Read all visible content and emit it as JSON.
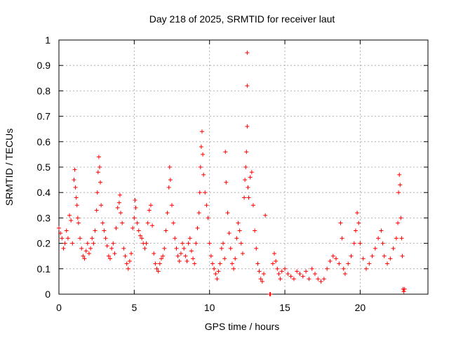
{
  "chart_data": {
    "type": "scatter",
    "title": "Day 218 of 2025, SRMTID for receiver laut",
    "xlabel": "GPS time / hours",
    "ylabel": "SRMTID / TECUs",
    "xlim": [
      0,
      24.5
    ],
    "ylim": [
      0,
      1
    ],
    "xticks": [
      0,
      5,
      10,
      15,
      20
    ],
    "xtick_labels": [
      "0",
      "5",
      "10",
      "15",
      "20"
    ],
    "yticks": [
      0,
      0.1,
      0.2,
      0.3,
      0.4,
      0.5,
      0.6,
      0.7,
      0.8,
      0.9,
      1
    ],
    "ytick_labels": [
      "0",
      "0.1",
      "0.2",
      "0.3",
      "0.4",
      "0.5",
      "0.6",
      "0.7",
      "0.8",
      "0.9",
      "1"
    ],
    "grid": true,
    "marker": "+",
    "color": "#ff0000",
    "series": [
      {
        "name": "SRMTID",
        "points": [
          [
            0.0,
            0.26
          ],
          [
            0.1,
            0.24
          ],
          [
            0.2,
            0.22
          ],
          [
            0.3,
            0.18
          ],
          [
            0.4,
            0.2
          ],
          [
            0.5,
            0.25
          ],
          [
            0.6,
            0.22
          ],
          [
            0.7,
            0.31
          ],
          [
            0.8,
            0.29
          ],
          [
            0.9,
            0.2
          ],
          [
            1.0,
            0.45
          ],
          [
            1.05,
            0.49
          ],
          [
            1.1,
            0.42
          ],
          [
            1.15,
            0.38
          ],
          [
            1.2,
            0.35
          ],
          [
            1.25,
            0.3
          ],
          [
            1.3,
            0.28
          ],
          [
            1.4,
            0.22
          ],
          [
            1.5,
            0.18
          ],
          [
            1.6,
            0.15
          ],
          [
            1.7,
            0.14
          ],
          [
            1.8,
            0.17
          ],
          [
            1.9,
            0.2
          ],
          [
            2.0,
            0.16
          ],
          [
            2.1,
            0.18
          ],
          [
            2.2,
            0.22
          ],
          [
            2.3,
            0.2
          ],
          [
            2.4,
            0.25
          ],
          [
            2.5,
            0.33
          ],
          [
            2.55,
            0.4
          ],
          [
            2.6,
            0.48
          ],
          [
            2.65,
            0.54
          ],
          [
            2.7,
            0.5
          ],
          [
            2.75,
            0.44
          ],
          [
            2.8,
            0.35
          ],
          [
            2.9,
            0.28
          ],
          [
            3.0,
            0.25
          ],
          [
            3.1,
            0.22
          ],
          [
            3.2,
            0.19
          ],
          [
            3.3,
            0.15
          ],
          [
            3.4,
            0.14
          ],
          [
            3.5,
            0.18
          ],
          [
            3.6,
            0.2
          ],
          [
            3.7,
            0.16
          ],
          [
            3.8,
            0.26
          ],
          [
            3.9,
            0.34
          ],
          [
            4.0,
            0.36
          ],
          [
            4.05,
            0.39
          ],
          [
            4.1,
            0.32
          ],
          [
            4.2,
            0.28
          ],
          [
            4.3,
            0.18
          ],
          [
            4.4,
            0.15
          ],
          [
            4.5,
            0.12
          ],
          [
            4.6,
            0.1
          ],
          [
            4.7,
            0.13
          ],
          [
            4.8,
            0.16
          ],
          [
            4.9,
            0.26
          ],
          [
            5.0,
            0.3
          ],
          [
            5.05,
            0.37
          ],
          [
            5.1,
            0.34
          ],
          [
            5.2,
            0.28
          ],
          [
            5.3,
            0.25
          ],
          [
            5.4,
            0.23
          ],
          [
            5.5,
            0.22
          ],
          [
            5.6,
            0.2
          ],
          [
            5.7,
            0.18
          ],
          [
            5.8,
            0.2
          ],
          [
            5.9,
            0.28
          ],
          [
            6.0,
            0.33
          ],
          [
            6.1,
            0.35
          ],
          [
            6.2,
            0.27
          ],
          [
            6.3,
            0.16
          ],
          [
            6.4,
            0.12
          ],
          [
            6.5,
            0.1
          ],
          [
            6.6,
            0.09
          ],
          [
            6.7,
            0.12
          ],
          [
            6.8,
            0.14
          ],
          [
            6.9,
            0.15
          ],
          [
            7.0,
            0.18
          ],
          [
            7.1,
            0.25
          ],
          [
            7.2,
            0.32
          ],
          [
            7.3,
            0.42
          ],
          [
            7.35,
            0.5
          ],
          [
            7.4,
            0.45
          ],
          [
            7.5,
            0.35
          ],
          [
            7.6,
            0.28
          ],
          [
            7.7,
            0.22
          ],
          [
            7.8,
            0.18
          ],
          [
            7.9,
            0.15
          ],
          [
            8.0,
            0.13
          ],
          [
            8.1,
            0.16
          ],
          [
            8.2,
            0.2
          ],
          [
            8.3,
            0.18
          ],
          [
            8.4,
            0.15
          ],
          [
            8.5,
            0.13
          ],
          [
            8.6,
            0.2
          ],
          [
            8.7,
            0.22
          ],
          [
            8.8,
            0.17
          ],
          [
            8.9,
            0.14
          ],
          [
            9.0,
            0.12
          ],
          [
            9.1,
            0.2
          ],
          [
            9.2,
            0.26
          ],
          [
            9.3,
            0.32
          ],
          [
            9.35,
            0.4
          ],
          [
            9.4,
            0.5
          ],
          [
            9.45,
            0.58
          ],
          [
            9.5,
            0.64
          ],
          [
            9.55,
            0.55
          ],
          [
            9.6,
            0.47
          ],
          [
            9.7,
            0.4
          ],
          [
            9.8,
            0.35
          ],
          [
            9.9,
            0.3
          ],
          [
            10.0,
            0.2
          ],
          [
            10.1,
            0.15
          ],
          [
            10.2,
            0.12
          ],
          [
            10.3,
            0.1
          ],
          [
            10.4,
            0.08
          ],
          [
            10.5,
            0.06
          ],
          [
            10.6,
            0.09
          ],
          [
            10.7,
            0.12
          ],
          [
            10.8,
            0.18
          ],
          [
            10.9,
            0.2
          ],
          [
            11.0,
            0.14
          ],
          [
            11.05,
            0.56
          ],
          [
            11.1,
            0.44
          ],
          [
            11.2,
            0.32
          ],
          [
            11.3,
            0.24
          ],
          [
            11.4,
            0.18
          ],
          [
            11.5,
            0.12
          ],
          [
            11.6,
            0.1
          ],
          [
            11.7,
            0.14
          ],
          [
            11.8,
            0.22
          ],
          [
            11.9,
            0.28
          ],
          [
            12.0,
            0.25
          ],
          [
            12.1,
            0.2
          ],
          [
            12.2,
            0.16
          ],
          [
            12.3,
            0.38
          ],
          [
            12.35,
            0.45
          ],
          [
            12.4,
            0.5
          ],
          [
            12.45,
            0.56
          ],
          [
            12.5,
            0.95
          ],
          [
            12.5,
            0.82
          ],
          [
            12.5,
            0.66
          ],
          [
            12.55,
            0.42
          ],
          [
            12.6,
            0.38
          ],
          [
            12.7,
            0.46
          ],
          [
            12.8,
            0.48
          ],
          [
            12.9,
            0.35
          ],
          [
            13.0,
            0.25
          ],
          [
            13.1,
            0.18
          ],
          [
            13.2,
            0.12
          ],
          [
            13.3,
            0.09
          ],
          [
            13.4,
            0.06
          ],
          [
            13.5,
            0.05
          ],
          [
            13.6,
            0.08
          ],
          [
            13.7,
            0.31
          ],
          [
            14.0,
            0.0
          ],
          [
            14.05,
            0.0
          ],
          [
            14.2,
            0.12
          ],
          [
            14.3,
            0.16
          ],
          [
            14.4,
            0.13
          ],
          [
            14.5,
            0.1
          ],
          [
            14.6,
            0.08
          ],
          [
            14.7,
            0.06
          ],
          [
            14.8,
            0.09
          ],
          [
            15.0,
            0.1
          ],
          [
            15.2,
            0.08
          ],
          [
            15.4,
            0.07
          ],
          [
            15.6,
            0.06
          ],
          [
            15.8,
            0.09
          ],
          [
            16.0,
            0.08
          ],
          [
            16.2,
            0.07
          ],
          [
            16.4,
            0.09
          ],
          [
            16.6,
            0.06
          ],
          [
            16.8,
            0.1
          ],
          [
            17.0,
            0.08
          ],
          [
            17.2,
            0.06
          ],
          [
            17.4,
            0.05
          ],
          [
            17.6,
            0.06
          ],
          [
            17.8,
            0.1
          ],
          [
            18.0,
            0.13
          ],
          [
            18.2,
            0.15
          ],
          [
            18.4,
            0.14
          ],
          [
            18.6,
            0.12
          ],
          [
            18.7,
            0.28
          ],
          [
            18.8,
            0.22
          ],
          [
            18.9,
            0.1
          ],
          [
            19.0,
            0.08
          ],
          [
            19.2,
            0.12
          ],
          [
            19.4,
            0.15
          ],
          [
            19.6,
            0.2
          ],
          [
            19.7,
            0.25
          ],
          [
            19.8,
            0.32
          ],
          [
            19.9,
            0.28
          ],
          [
            20.0,
            0.2
          ],
          [
            20.2,
            0.14
          ],
          [
            20.4,
            0.1
          ],
          [
            20.6,
            0.12
          ],
          [
            20.8,
            0.15
          ],
          [
            21.0,
            0.18
          ],
          [
            21.2,
            0.22
          ],
          [
            21.4,
            0.25
          ],
          [
            21.5,
            0.2
          ],
          [
            21.6,
            0.15
          ],
          [
            21.8,
            0.12
          ],
          [
            22.0,
            0.14
          ],
          [
            22.2,
            0.18
          ],
          [
            22.4,
            0.22
          ],
          [
            22.5,
            0.28
          ],
          [
            22.55,
            0.4
          ],
          [
            22.6,
            0.47
          ],
          [
            22.65,
            0.43
          ],
          [
            22.7,
            0.3
          ],
          [
            22.75,
            0.22
          ],
          [
            22.8,
            0.15
          ],
          [
            22.85,
            0.02
          ],
          [
            22.9,
            0.01
          ],
          [
            22.95,
            0.02
          ]
        ]
      }
    ]
  }
}
